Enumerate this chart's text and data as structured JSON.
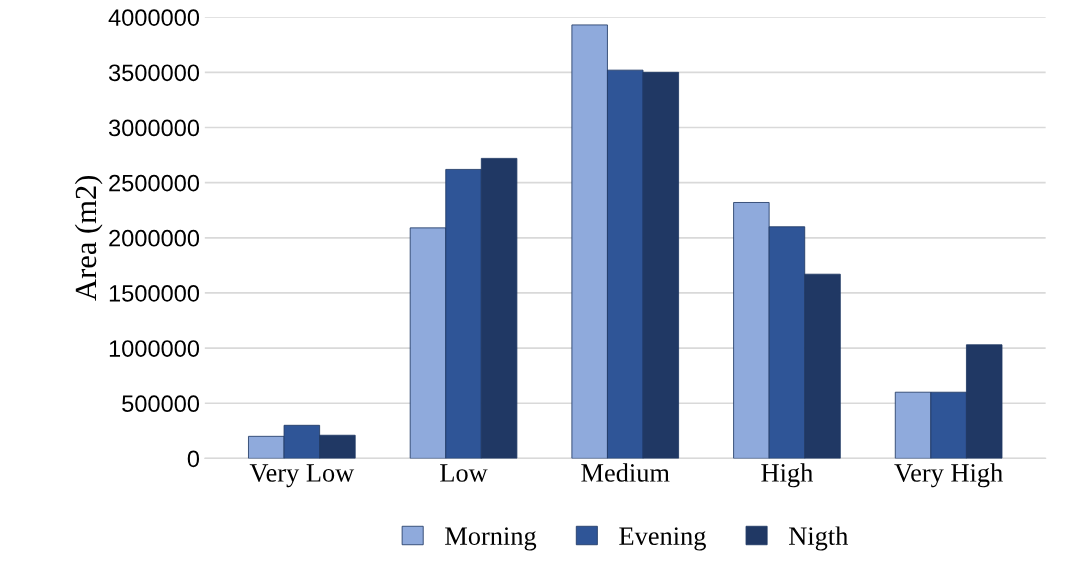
{
  "chart_data": {
    "type": "bar",
    "ylabel": "Area (m2)",
    "categories": [
      "Very Low",
      "Low",
      "Medium",
      "High",
      "Very High"
    ],
    "series": [
      {
        "name": "Morning",
        "color": "#8faadc",
        "values": [
          200000,
          2090000,
          3930000,
          2320000,
          600000
        ]
      },
      {
        "name": "Evening",
        "color": "#2f5597",
        "values": [
          300000,
          2620000,
          3520000,
          2100000,
          600000
        ]
      },
      {
        "name": "Nigth",
        "color": "#203864",
        "values": [
          210000,
          2720000,
          3500000,
          1670000,
          1030000
        ]
      }
    ],
    "ylim": [
      0,
      4000000
    ],
    "yticks": [
      0,
      500000,
      1000000,
      1500000,
      2000000,
      2500000,
      3000000,
      3500000,
      4000000
    ],
    "grid": "y",
    "legend": "bottom"
  }
}
